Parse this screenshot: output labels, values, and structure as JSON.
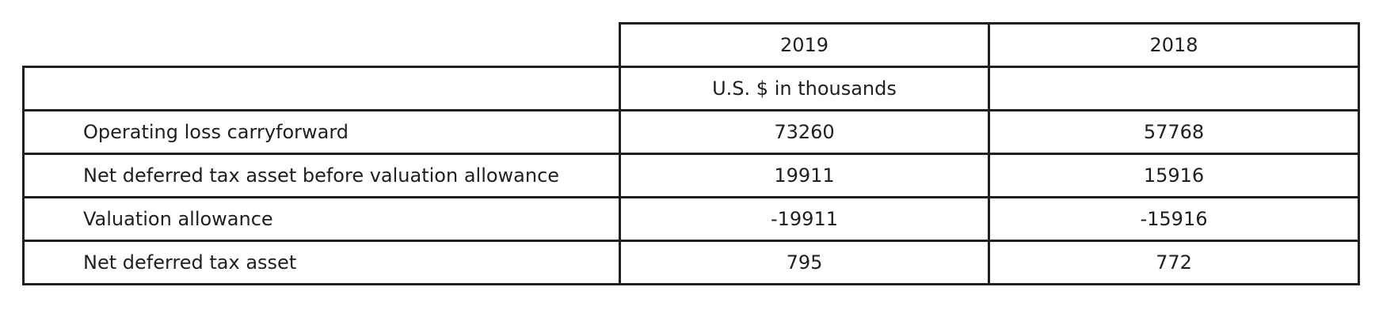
{
  "table": {
    "header": {
      "year_2019": "2019",
      "year_2018": "2018"
    },
    "units_row": {
      "label": "",
      "col_2019": "U.S. $ in thousands",
      "col_2018": ""
    },
    "rows": [
      {
        "label": "Operating loss carryforward",
        "v2019": "73260",
        "v2018": "57768"
      },
      {
        "label": "Net deferred tax asset before valuation allowance",
        "v2019": "19911",
        "v2018": "15916"
      },
      {
        "label": "Valuation allowance",
        "v2019": "-19911",
        "v2018": "-15916"
      },
      {
        "label": "Net deferred tax asset",
        "v2019": "795",
        "v2018": "772"
      }
    ]
  }
}
